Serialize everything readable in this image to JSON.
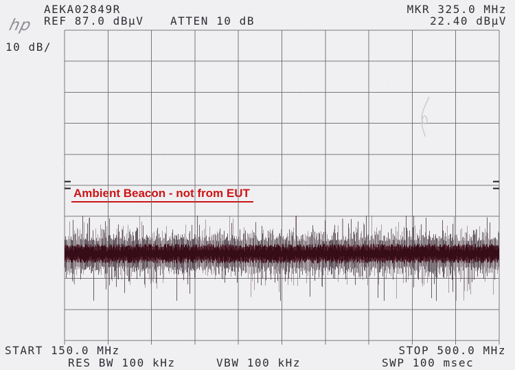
{
  "logo": {
    "text": "hp"
  },
  "header": {
    "title": "AEKA02849R",
    "ref_level": "REF 87.0 dBµV",
    "atten": "ATTEN 10 dB",
    "marker_freq": "MKR 325.0 MHz",
    "marker_amp": "22.40 dBµV"
  },
  "left_panel": {
    "scale": "10 dB/"
  },
  "footer": {
    "start": "START 150.0 MHz",
    "stop": "STOP 500.0 MHz",
    "res_bw": "RES BW 100 kHz",
    "vbw": "VBW 100 kHz",
    "sweep": "SWP 100 msec"
  },
  "annotation": {
    "text": "Ambient Beacon - not from EUT",
    "color": "#cc1414"
  },
  "chart_data": {
    "type": "line",
    "subtype": "spectrum_analyzer_noise_trace",
    "title": "AEKA02849R",
    "x_axis": {
      "start_mhz": 150.0,
      "stop_mhz": 500.0,
      "divisions": 10,
      "label_start": "START 150.0 MHz",
      "label_stop": "STOP 500.0 MHz"
    },
    "y_axis": {
      "unit": "dBµV",
      "ref_level_dbuv": 87.0,
      "db_per_div": 10,
      "divisions": 10,
      "min_dbuv": -13.0,
      "scale_label": "10 dB/"
    },
    "settings": {
      "atten_db": 10,
      "res_bw": "100 kHz",
      "vbw": "100 kHz",
      "sweep": "100 msec"
    },
    "marker": {
      "freq_mhz": 325.0,
      "amp_dbuv": 22.4
    },
    "trace": {
      "kind": "broadband_noise_floor",
      "mean_dbuv": 15.0,
      "core_spread_db": 6.4,
      "peak_dbuv": 27.2,
      "min_dbuv": -0.2,
      "color_core": "#4f1422",
      "color_dense": "#330a15",
      "color_spikes_light": "#5d4f55",
      "color_spikes_dark": "#463840",
      "seed": 1337
    },
    "grid": {
      "on": true,
      "line_color": "#6b6b6e"
    },
    "annotations": [
      {
        "text": "Ambient Beacon - not from EUT",
        "color": "#cc1414"
      }
    ]
  }
}
